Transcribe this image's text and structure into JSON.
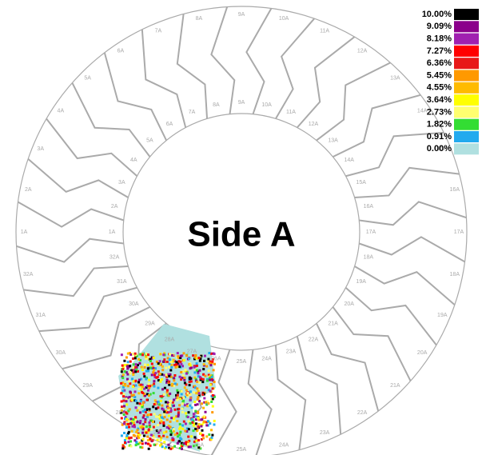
{
  "title": "Side A",
  "legend": [
    {
      "label": "10.00%",
      "color": "#000000"
    },
    {
      "label": "9.09%",
      "color": "#8b008b"
    },
    {
      "label": "8.18%",
      "color": "#a020b0"
    },
    {
      "label": "7.27%",
      "color": "#ff0000"
    },
    {
      "label": "6.36%",
      "color": "#e81818"
    },
    {
      "label": "5.45%",
      "color": "#ff9900"
    },
    {
      "label": "4.55%",
      "color": "#ffbb00"
    },
    {
      "label": "3.64%",
      "color": "#ffff00"
    },
    {
      "label": "2.73%",
      "color": "#ffff70"
    },
    {
      "label": "1.82%",
      "color": "#33dd33"
    },
    {
      "label": "0.91%",
      "color": "#22aaee"
    },
    {
      "label": "0.00%",
      "color": "#b0e0e0"
    }
  ],
  "inner_labels": [
    "1A",
    "2A",
    "3A",
    "4A",
    "5A",
    "6A",
    "7A",
    "8A",
    "9A",
    "10A",
    "11A",
    "12A",
    "13A",
    "14A",
    "15A",
    "16A",
    "17A",
    "18A",
    "19A",
    "20A",
    "21A",
    "22A",
    "23A",
    "24A",
    "25A",
    "26A",
    "27A",
    "28A",
    "29A",
    "30A",
    "31A",
    "32A"
  ],
  "outer_labels": [
    "1A",
    "2A",
    "3A",
    "4A",
    "5A",
    "6A",
    "7A",
    "8A",
    "9A",
    "10A",
    "11A",
    "12A",
    "13A",
    "14A",
    "15A",
    "16A",
    "17A",
    "18A",
    "19A",
    "20A",
    "21A",
    "22A",
    "23A",
    "24A",
    "25A",
    "26A",
    "27A",
    "28A",
    "29A",
    "30A",
    "31A",
    "32A"
  ]
}
